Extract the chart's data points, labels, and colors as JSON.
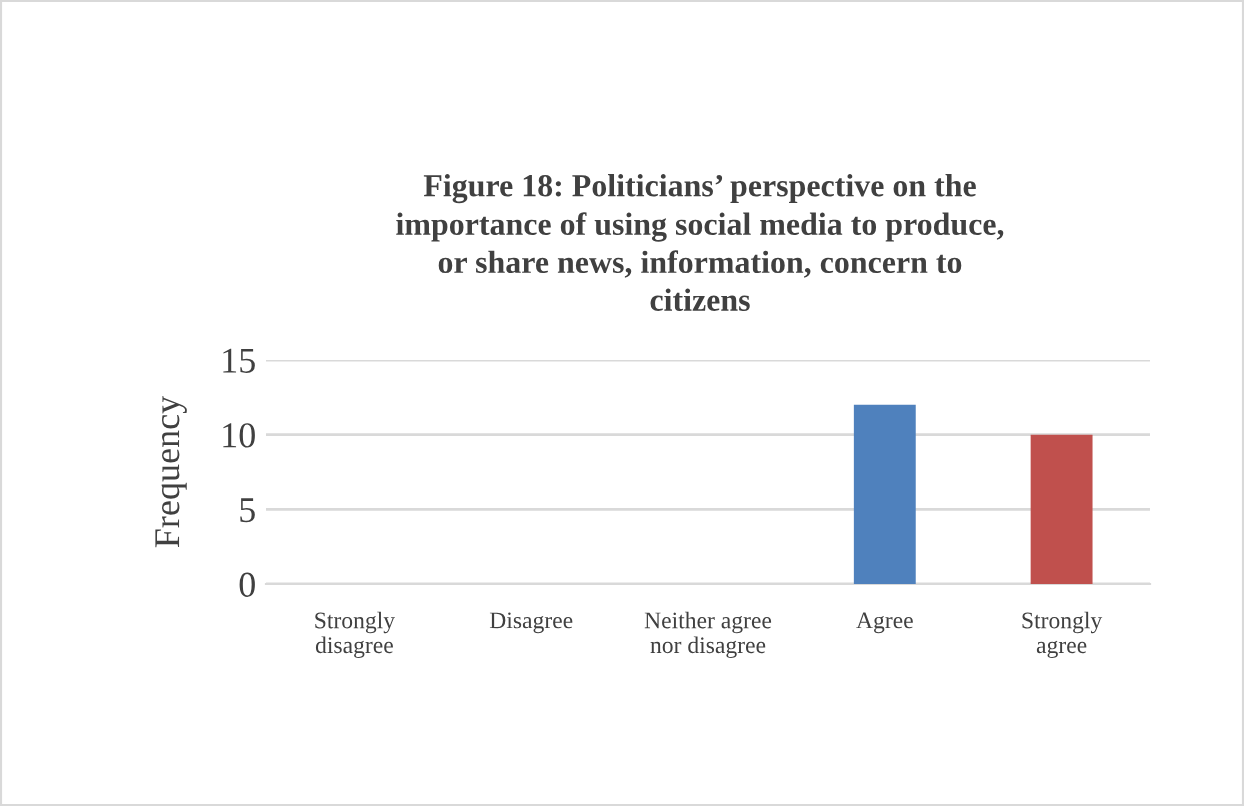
{
  "chart_data": {
    "type": "bar",
    "title": "Figure 18: Politicians’ perspective on the\nimportance of using social media to produce,\nor share news, information, concern to\ncitizens",
    "ylabel": "Frequency",
    "categories": [
      "Strongly\ndisagree",
      "Disagree",
      "Neither agree\nnor disagree",
      "Agree",
      "Strongly\nagree"
    ],
    "values": [
      0,
      0,
      0,
      12,
      10
    ],
    "colors": [
      "#4f81bd",
      "#4f81bd",
      "#4f81bd",
      "#4f81bd",
      "#c0504d"
    ],
    "ylim": [
      0,
      15
    ],
    "yticks": [
      0,
      5,
      10,
      15
    ],
    "grid": "y",
    "legend": false
  }
}
